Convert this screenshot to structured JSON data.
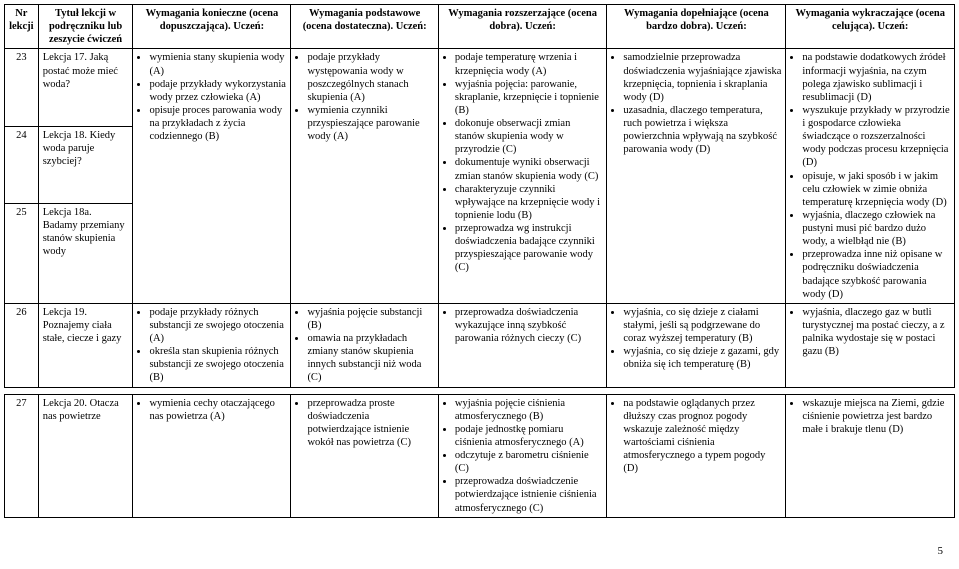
{
  "footer_page": "5",
  "col_widths": [
    "32px",
    "90px",
    "150px",
    "140px",
    "160px",
    "170px",
    "160px"
  ],
  "headers": [
    "Nr lekcji",
    "Tytuł lekcji w podręczniku lub zeszycie ćwiczeń",
    "Wymagania konieczne (ocena dopuszczająca). Uczeń:",
    "Wymagania podstawowe (ocena dostateczna). Uczeń:",
    "Wymagania rozszerzające (ocena dobra). Uczeń:",
    "Wymagania dopełniające (ocena bardzo dobra). Uczeń:",
    "Wymagania wykraczające (ocena celująca). Uczeń:"
  ],
  "block1": {
    "rows_titles": [
      {
        "nr": "23",
        "title": "Lekcja 17. Jaką postać może mieć woda?"
      },
      {
        "nr": "24",
        "title": "Lekcja 18. Kiedy woda paruje szybciej?"
      },
      {
        "nr": "25",
        "title": "Lekcja 18a. Badamy przemiany stanów skupienia wody"
      }
    ],
    "c3": [
      "wymienia stany skupienia wody (A)",
      "podaje przykłady wykorzystania wody przez człowieka (A)",
      "opisuje proces parowania wody na przykładach z życia codziennego (B)"
    ],
    "c4": [
      "podaje przykłady występowania wody w poszczególnych stanach skupienia (A)",
      "wymienia czynniki przyspieszające parowanie wody (A)"
    ],
    "c5": [
      "podaje temperaturę wrzenia i krzepnięcia wody (A)",
      "wyjaśnia pojęcia: parowanie, skraplanie, krzepnięcie i topnienie (B)",
      "dokonuje obserwacji zmian stanów skupienia wody w przyrodzie (C)",
      "dokumentuje wyniki obserwacji zmian stanów skupienia wody (C)",
      "charakteryzuje czynniki wpływające na krzepnięcie wody i topnienie lodu (B)",
      "przeprowadza wg instrukcji doświadczenia badające czynniki przyspieszające parowanie wody (C)"
    ],
    "c6": [
      "samodzielnie przeprowadza doświadczenia wyjaśniające zjawiska krzepnięcia, topnienia i skraplania wody (D)",
      "uzasadnia, dlaczego temperatura, ruch powietrza i większa powierzchnia wpływają na szybkość parowania wody (D)"
    ],
    "c7": [
      "na podstawie dodatkowych źródeł informacji wyjaśnia, na czym polega zjawisko sublimacji i resublimacji (D)",
      "wyszukuje przykłady w przyrodzie i gospodarce człowieka świadczące o rozszerzalności wody podczas procesu krzepnięcia (D)",
      "opisuje, w jaki sposób i w jakim celu człowiek w zimie obniża temperaturę krzepnięcia wody (D)",
      "wyjaśnia, dlaczego człowiek na pustyni musi pić bardzo dużo wody, a wielbłąd nie (B)",
      "przeprowadza inne niż opisane w podręczniku doświadczenia badające szybkość parowania wody (D)"
    ]
  },
  "row26": {
    "nr": "26",
    "title": "Lekcja 19. Poznajemy ciała stałe, ciecze i gazy",
    "c3": [
      "podaje przykłady różnych substancji ze swojego otoczenia (A)",
      "określa stan skupienia różnych substancji ze swojego otoczenia (B)"
    ],
    "c4": [
      "wyjaśnia pojęcie substancji (B)",
      "omawia na przykładach zmiany stanów skupienia innych substancji niż woda (C)"
    ],
    "c5": [
      "przeprowadza doświadczenia wykazujące inną szybkość parowania różnych cieczy (C)"
    ],
    "c6": [
      "wyjaśnia, co się dzieje z ciałami stałymi, jeśli są podgrzewane do coraz wyższej temperatury (B)",
      "wyjaśnia, co się dzieje z gazami, gdy obniża się ich temperaturę (B)"
    ],
    "c7": [
      "wyjaśnia, dlaczego gaz w butli turystycznej ma postać cieczy, a z palnika wydostaje się w postaci gazu (B)"
    ]
  },
  "row27": {
    "nr": "27",
    "title": "Lekcja 20. Otacza nas powietrze",
    "c3": [
      "wymienia cechy otaczającego nas powietrza (A)"
    ],
    "c4": [
      "przeprowadza proste doświadczenia potwierdzające istnienie wokół nas powietrza (C)"
    ],
    "c5": [
      "wyjaśnia pojęcie ciśnienia atmosferycznego (B)",
      "podaje jednostkę pomiaru ciśnienia atmosferycznego (A)",
      "odczytuje z barometru ciśnienie (C)",
      "przeprowadza doświadczenie potwierdzające istnienie ciśnienia atmosferycznego (C)"
    ],
    "c6": [
      "na podstawie oglądanych przez dłuższy czas prognoz pogody wskazuje zależność między wartościami ciśnienia atmosferycznego a typem pogody (D)"
    ],
    "c7": [
      "wskazuje miejsca na Ziemi, gdzie ciśnienie powietrza jest bardzo małe i brakuje tlenu (D)"
    ]
  }
}
